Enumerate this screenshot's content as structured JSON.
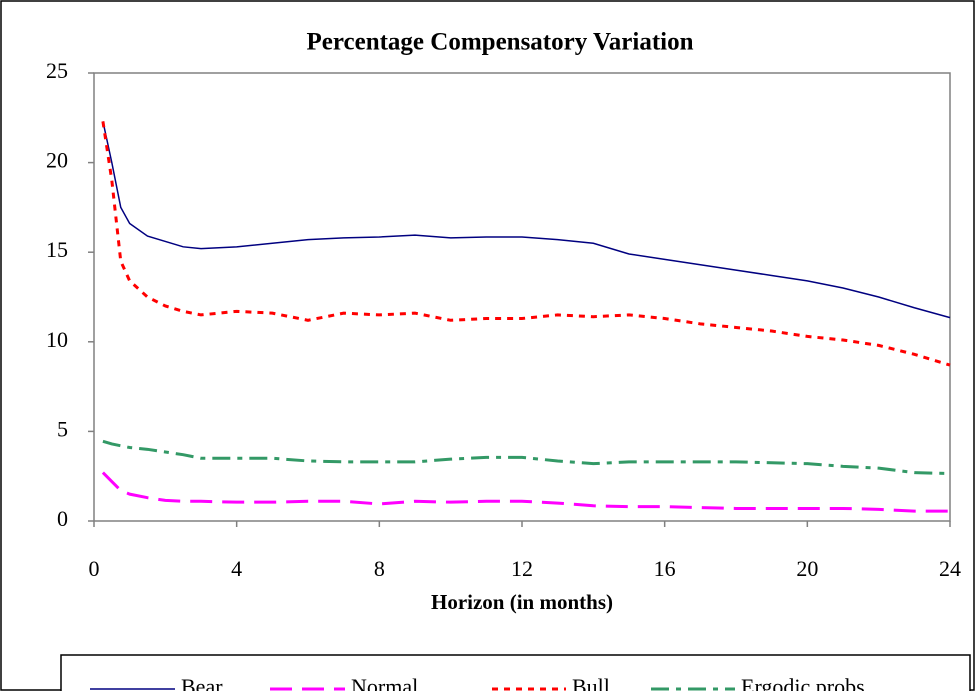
{
  "chart_data": {
    "type": "line",
    "title": "Percentage Compensatory Variation",
    "x_label": "Horizon (in months)",
    "x": [
      0.25,
      0.5,
      0.75,
      1,
      1.5,
      2,
      2.5,
      3,
      4,
      5,
      6,
      7,
      8,
      9,
      10,
      11,
      12,
      13,
      14,
      15,
      16,
      17,
      18,
      19,
      20,
      21,
      22,
      23,
      24
    ],
    "series": [
      {
        "name": "Bear",
        "color": "#000080",
        "dash": "solid",
        "values": [
          22.3,
          20,
          17.5,
          16.6,
          15.9,
          15.6,
          15.3,
          15.2,
          15.3,
          15.5,
          15.7,
          15.8,
          15.85,
          15.95,
          15.8,
          15.85,
          15.85,
          15.7,
          15.5,
          14.9,
          14.6,
          14.3,
          14.0,
          13.7,
          13.4,
          13.0,
          12.5,
          11.9,
          11.35
        ]
      },
      {
        "name": "Normal",
        "color": "#ff00ff",
        "dash": "dashed",
        "values": [
          2.7,
          2.2,
          1.7,
          1.5,
          1.3,
          1.15,
          1.1,
          1.1,
          1.05,
          1.05,
          1.1,
          1.1,
          0.95,
          1.1,
          1.05,
          1.1,
          1.1,
          1.0,
          0.85,
          0.8,
          0.8,
          0.75,
          0.7,
          0.7,
          0.7,
          0.7,
          0.65,
          0.55,
          0.55
        ]
      },
      {
        "name": "Bull",
        "color": "#ff0000",
        "dash": "dotted",
        "values": [
          22.3,
          19,
          14.5,
          13.4,
          12.5,
          12.0,
          11.7,
          11.5,
          11.7,
          11.6,
          11.2,
          11.6,
          11.5,
          11.6,
          11.2,
          11.3,
          11.3,
          11.5,
          11.4,
          11.5,
          11.3,
          11.0,
          10.8,
          10.6,
          10.3,
          10.1,
          9.8,
          9.3,
          8.7
        ]
      },
      {
        "name": "Ergodic probs.",
        "color": "#339966",
        "dash": "dashdot",
        "values": [
          4.45,
          4.3,
          4.2,
          4.1,
          4.0,
          3.85,
          3.7,
          3.5,
          3.5,
          3.5,
          3.35,
          3.3,
          3.3,
          3.3,
          3.45,
          3.55,
          3.55,
          3.35,
          3.2,
          3.3,
          3.3,
          3.3,
          3.3,
          3.25,
          3.2,
          3.05,
          2.95,
          2.7,
          2.65
        ]
      }
    ],
    "xlim": [
      0,
      24
    ],
    "xticks": [
      0,
      4,
      8,
      12,
      16,
      20,
      24
    ],
    "ylim": [
      0,
      25
    ],
    "yticks": [
      0,
      5,
      10,
      15,
      20,
      25
    ],
    "grid": false,
    "legend": "bottom"
  }
}
